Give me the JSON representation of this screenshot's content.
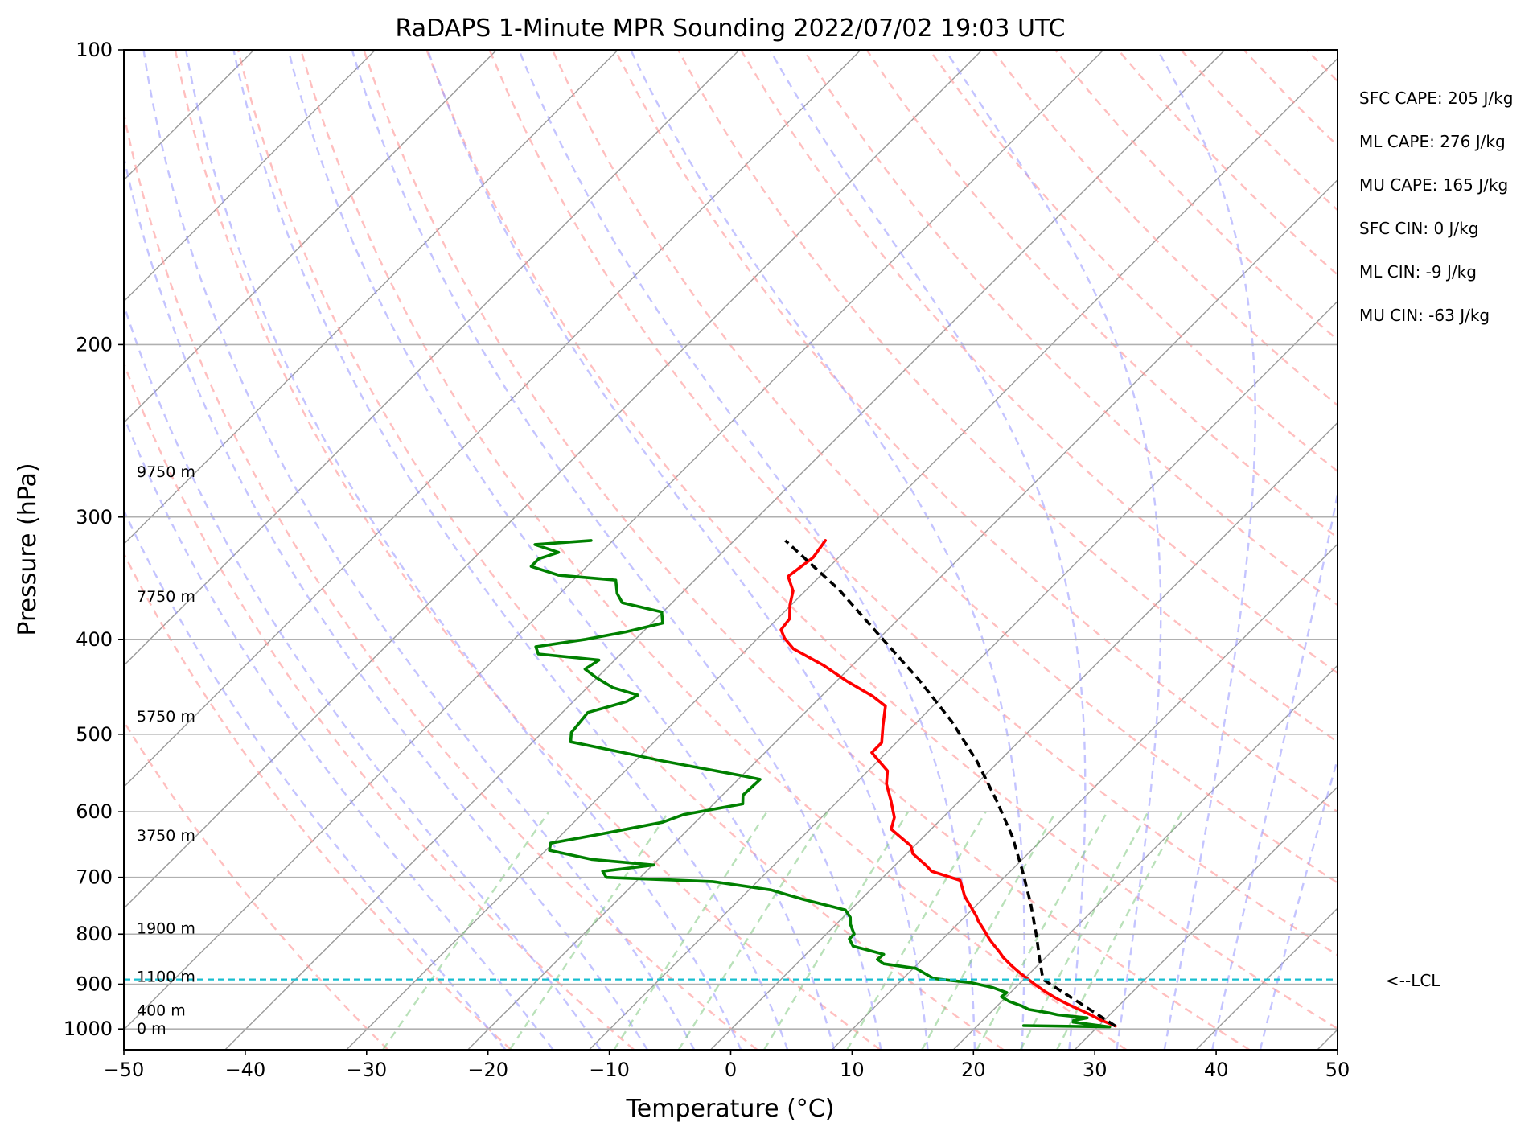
{
  "chart_data": {
    "type": "line",
    "title": "RaDAPS 1-Minute MPR Sounding 2022/07/02 19:03 UTC",
    "xlabel": "Temperature (°C)",
    "ylabel": "Pressure (hPa)",
    "xlim": [
      -50,
      50
    ],
    "ylim": [
      1050,
      100
    ],
    "y_scale": "log",
    "skew": "skew-T",
    "grid": true,
    "x_ticks": [
      "−50",
      "−40",
      "−30",
      "−20",
      "−10",
      "0",
      "10",
      "20",
      "30",
      "40",
      "50"
    ],
    "y_ticks": [
      "100",
      "200",
      "300",
      "400",
      "500",
      "600",
      "700",
      "800",
      "900",
      "1000"
    ],
    "height_labels": [
      {
        "text": "0 m",
        "p": 1000
      },
      {
        "text": "400 m",
        "p": 958
      },
      {
        "text": "1100 m",
        "p": 885
      },
      {
        "text": "1900 m",
        "p": 790
      },
      {
        "text": "3750 m",
        "p": 635
      },
      {
        "text": "5750 m",
        "p": 480
      },
      {
        "text": "7750 m",
        "p": 362
      },
      {
        "text": "9750 m",
        "p": 270
      }
    ],
    "stats": [
      "SFC CAPE: 205 J/kg",
      "ML CAPE: 276 J/kg",
      "MU CAPE: 165 J/kg",
      "SFC CIN: 0 J/kg",
      "ML CIN: -9 J/kg",
      "MU CIN: -63 J/kg"
    ],
    "lcl": {
      "label": "<--LCL",
      "p": 890
    },
    "series": [
      {
        "color": "#ff0000",
        "points": [
          [
            31.4,
            993
          ],
          [
            29.7,
            979
          ],
          [
            28.3,
            966
          ],
          [
            26.8,
            953
          ],
          [
            25.3,
            940
          ],
          [
            24.2,
            930
          ],
          [
            22.8,
            916
          ],
          [
            21.3,
            900
          ],
          [
            20.4,
            890
          ],
          [
            19.2,
            877
          ],
          [
            17.9,
            862
          ],
          [
            16.5,
            845
          ],
          [
            15.8,
            835
          ],
          [
            14.5,
            818
          ],
          [
            13.9,
            810
          ],
          [
            12.5,
            790
          ],
          [
            11.4,
            775
          ],
          [
            10.9,
            767
          ],
          [
            8.3,
            732
          ],
          [
            6.6,
            705
          ],
          [
            3.5,
            690
          ],
          [
            2.5,
            680
          ],
          [
            0.5,
            662
          ],
          [
            -0.3,
            650
          ],
          [
            -3.3,
            625
          ],
          [
            -4.0,
            608
          ],
          [
            -5.7,
            584
          ],
          [
            -7.4,
            562
          ],
          [
            -8.4,
            545
          ],
          [
            -11.2,
            522
          ],
          [
            -11.2,
            510
          ],
          [
            -12.5,
            490
          ],
          [
            -13.9,
            468
          ],
          [
            -15.8,
            457
          ],
          [
            -19.2,
            441
          ],
          [
            -22.4,
            425
          ],
          [
            -26.2,
            409
          ],
          [
            -27.8,
            399
          ],
          [
            -28.8,
            391
          ],
          [
            -29.0,
            381
          ],
          [
            -30.1,
            369
          ],
          [
            -31.0,
            357
          ],
          [
            -32.6,
            345
          ],
          [
            -32.1,
            330
          ],
          [
            -32.5,
            317
          ]
        ]
      },
      {
        "color": "#008000",
        "points": [
          [
            23.8,
            992
          ],
          [
            31.0,
            995
          ],
          [
            27.6,
            984
          ],
          [
            27.5,
            980
          ],
          [
            28.4,
            974
          ],
          [
            25.7,
            967
          ],
          [
            24.9,
            963
          ],
          [
            22.9,
            955
          ],
          [
            22.0,
            947
          ],
          [
            20.6,
            937
          ],
          [
            19.6,
            927
          ],
          [
            19.7,
            918
          ],
          [
            18.1,
            907
          ],
          [
            16.0,
            897
          ],
          [
            12.5,
            888
          ],
          [
            11.3,
            877
          ],
          [
            10.2,
            867
          ],
          [
            7.2,
            858
          ],
          [
            6.3,
            849
          ],
          [
            6.4,
            839
          ],
          [
            4.8,
            831
          ],
          [
            3.2,
            823
          ],
          [
            2.3,
            809
          ],
          [
            2.3,
            800
          ],
          [
            1.2,
            782
          ],
          [
            0.6,
            769
          ],
          [
            -0.4,
            756
          ],
          [
            -4.8,
            737
          ],
          [
            -8.2,
            721
          ],
          [
            -13.7,
            707
          ],
          [
            -22.8,
            700
          ],
          [
            -23.6,
            690
          ],
          [
            -19.9,
            680
          ],
          [
            -25.5,
            671
          ],
          [
            -29.7,
            657
          ],
          [
            -30.2,
            646
          ],
          [
            -27.0,
            633
          ],
          [
            -22.7,
            615
          ],
          [
            -21.6,
            604
          ],
          [
            -17.6,
            589
          ],
          [
            -18.3,
            577
          ],
          [
            -18.2,
            556
          ],
          [
            -20.1,
            551
          ],
          [
            -27.9,
            532
          ],
          [
            -30.9,
            524
          ],
          [
            -36.9,
            509
          ],
          [
            -37.6,
            498
          ],
          [
            -37.9,
            475
          ],
          [
            -35.6,
            463
          ],
          [
            -35.2,
            456
          ],
          [
            -37.9,
            448
          ],
          [
            -40.0,
            438
          ],
          [
            -41.7,
            429
          ],
          [
            -41.3,
            420
          ],
          [
            -46.8,
            414
          ],
          [
            -47.6,
            407
          ],
          [
            -44.1,
            400
          ],
          [
            -41.4,
            393
          ],
          [
            -39.1,
            385
          ],
          [
            -40.1,
            375
          ],
          [
            -44.1,
            367
          ],
          [
            -45.3,
            359
          ],
          [
            -46.5,
            348
          ],
          [
            -51.6,
            344
          ],
          [
            -54.6,
            337
          ],
          [
            -54.6,
            331
          ],
          [
            -53.5,
            326
          ],
          [
            -56.1,
            320
          ],
          [
            -51.8,
            317
          ]
        ]
      },
      {
        "color": "#000000",
        "dashed": true,
        "points": [
          [
            31.4,
            993
          ],
          [
            26.5,
            940
          ],
          [
            21.6,
            890
          ],
          [
            20.0,
            856
          ],
          [
            17.3,
            800
          ],
          [
            14.3,
            744
          ],
          [
            11.0,
            690
          ],
          [
            7.3,
            636
          ],
          [
            3.0,
            584
          ],
          [
            -1.8,
            533
          ],
          [
            -7.2,
            485
          ],
          [
            -13.3,
            440
          ],
          [
            -20.1,
            397
          ],
          [
            -27.3,
            356
          ],
          [
            -35.8,
            317
          ]
        ]
      }
    ]
  }
}
